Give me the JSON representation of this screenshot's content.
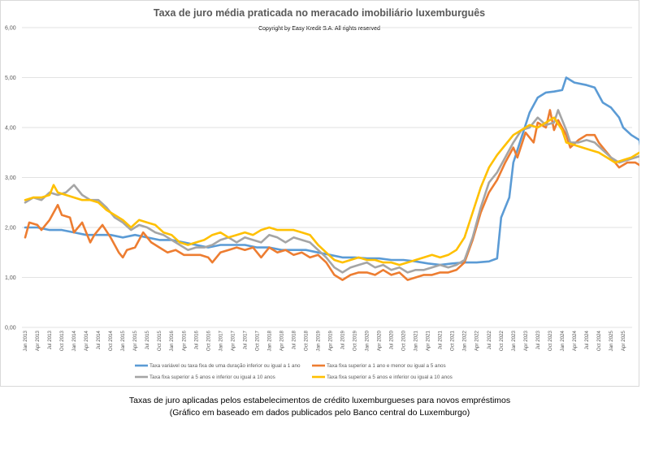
{
  "chart_data": {
    "type": "line",
    "title": "Taxa de juro média praticada no meracado imobiliário luxemburguês",
    "subtitle": "Copyright by Easy Kredit S.A. All rights reserved",
    "ylim": [
      0,
      6
    ],
    "yticks": [
      "0,00",
      "1,00",
      "2,00",
      "3,00",
      "4,00",
      "5,00",
      "6,00"
    ],
    "grid": "horizontal",
    "legend_position": "bottom",
    "x_labels": [
      "Jan 2013",
      "Apr 2013",
      "Jul 2013",
      "Oct 2013",
      "Jan 2014",
      "Apr 2014",
      "Jul 2014",
      "Oct 2014",
      "Jan 2015",
      "Apr 2015",
      "Jul 2015",
      "Oct 2015",
      "Jan 2016",
      "Apr 2016",
      "Jul 2016",
      "Oct 2016",
      "Jan 2017",
      "Apr 2017",
      "Jul 2017",
      "Oct 2017",
      "Jan 2018",
      "Apr 2018",
      "Jul 2018",
      "Oct 2018",
      "Jan 2019",
      "Apr 2019",
      "Jul 2019",
      "Oct 2019",
      "Jan 2020",
      "Apr 2020",
      "Jul 2020",
      "Oct 2020",
      "Jan 2021",
      "Apr 2021",
      "Jul 2021",
      "Oct 2021",
      "Jan 2022",
      "Apr 2022",
      "Jul 2022",
      "Oct 2022",
      "Jan 2023",
      "Apr 2023",
      "Jul 2023",
      "Oct 2023",
      "Jan 2024",
      "Apr 2024",
      "Jul 2024",
      "Oct 2024",
      "Jan 2025",
      "Apr 2025"
    ],
    "series": [
      {
        "name": "Taxa variável ou taxa fixa de uma duração inferior ou igual a 1 ano",
        "color": "#5b9bd5",
        "values": [
          [
            0,
            2.0
          ],
          [
            3,
            2.0
          ],
          [
            6,
            1.95
          ],
          [
            9,
            1.95
          ],
          [
            12,
            1.9
          ],
          [
            15,
            1.85
          ],
          [
            18,
            1.85
          ],
          [
            21,
            1.85
          ],
          [
            24,
            1.8
          ],
          [
            27,
            1.85
          ],
          [
            30,
            1.8
          ],
          [
            33,
            1.75
          ],
          [
            36,
            1.75
          ],
          [
            39,
            1.7
          ],
          [
            42,
            1.65
          ],
          [
            45,
            1.6
          ],
          [
            48,
            1.65
          ],
          [
            51,
            1.65
          ],
          [
            54,
            1.65
          ],
          [
            57,
            1.6
          ],
          [
            60,
            1.6
          ],
          [
            63,
            1.55
          ],
          [
            66,
            1.55
          ],
          [
            69,
            1.55
          ],
          [
            72,
            1.5
          ],
          [
            75,
            1.45
          ],
          [
            78,
            1.4
          ],
          [
            81,
            1.4
          ],
          [
            84,
            1.38
          ],
          [
            87,
            1.38
          ],
          [
            90,
            1.35
          ],
          [
            93,
            1.35
          ],
          [
            96,
            1.32
          ],
          [
            99,
            1.28
          ],
          [
            102,
            1.25
          ],
          [
            105,
            1.28
          ],
          [
            108,
            1.3
          ],
          [
            111,
            1.3
          ],
          [
            114,
            1.32
          ],
          [
            116,
            1.38
          ],
          [
            117,
            2.2
          ],
          [
            119,
            2.6
          ],
          [
            120,
            3.3
          ],
          [
            122,
            3.8
          ],
          [
            124,
            4.3
          ],
          [
            126,
            4.6
          ],
          [
            128,
            4.7
          ],
          [
            130,
            4.72
          ],
          [
            132,
            4.75
          ],
          [
            133,
            5.0
          ],
          [
            135,
            4.9
          ],
          [
            138,
            4.85
          ],
          [
            140,
            4.8
          ],
          [
            142,
            4.5
          ],
          [
            144,
            4.4
          ],
          [
            146,
            4.2
          ],
          [
            147,
            4.0
          ],
          [
            149,
            3.85
          ],
          [
            151,
            3.75
          ],
          [
            152,
            3.3
          ],
          [
            154,
            3.25
          ]
        ]
      },
      {
        "name": "Taxa fixa superior a 1 ano e menor ou igual a 5 anos",
        "color": "#ed7d31",
        "values": [
          [
            0,
            1.8
          ],
          [
            1,
            2.1
          ],
          [
            3,
            2.05
          ],
          [
            4,
            1.95
          ],
          [
            6,
            2.15
          ],
          [
            8,
            2.45
          ],
          [
            9,
            2.25
          ],
          [
            11,
            2.2
          ],
          [
            12,
            1.9
          ],
          [
            14,
            2.1
          ],
          [
            15,
            1.9
          ],
          [
            16,
            1.7
          ],
          [
            17,
            1.85
          ],
          [
            19,
            2.05
          ],
          [
            21,
            1.8
          ],
          [
            23,
            1.5
          ],
          [
            24,
            1.4
          ],
          [
            25,
            1.55
          ],
          [
            27,
            1.6
          ],
          [
            29,
            1.9
          ],
          [
            31,
            1.7
          ],
          [
            33,
            1.6
          ],
          [
            35,
            1.5
          ],
          [
            37,
            1.55
          ],
          [
            39,
            1.45
          ],
          [
            41,
            1.45
          ],
          [
            43,
            1.45
          ],
          [
            45,
            1.4
          ],
          [
            46,
            1.3
          ],
          [
            48,
            1.5
          ],
          [
            50,
            1.55
          ],
          [
            52,
            1.6
          ],
          [
            54,
            1.55
          ],
          [
            56,
            1.6
          ],
          [
            58,
            1.4
          ],
          [
            60,
            1.6
          ],
          [
            62,
            1.5
          ],
          [
            64,
            1.55
          ],
          [
            66,
            1.45
          ],
          [
            68,
            1.5
          ],
          [
            70,
            1.4
          ],
          [
            72,
            1.45
          ],
          [
            74,
            1.3
          ],
          [
            76,
            1.05
          ],
          [
            78,
            0.95
          ],
          [
            80,
            1.05
          ],
          [
            82,
            1.1
          ],
          [
            84,
            1.1
          ],
          [
            86,
            1.05
          ],
          [
            88,
            1.15
          ],
          [
            90,
            1.05
          ],
          [
            92,
            1.1
          ],
          [
            94,
            0.95
          ],
          [
            96,
            1.0
          ],
          [
            98,
            1.05
          ],
          [
            100,
            1.05
          ],
          [
            102,
            1.1
          ],
          [
            104,
            1.1
          ],
          [
            106,
            1.15
          ],
          [
            108,
            1.3
          ],
          [
            110,
            1.75
          ],
          [
            112,
            2.3
          ],
          [
            114,
            2.7
          ],
          [
            116,
            2.95
          ],
          [
            118,
            3.3
          ],
          [
            120,
            3.6
          ],
          [
            121,
            3.4
          ],
          [
            123,
            3.9
          ],
          [
            125,
            3.7
          ],
          [
            126,
            4.1
          ],
          [
            128,
            4.0
          ],
          [
            129,
            4.35
          ],
          [
            130,
            3.95
          ],
          [
            131,
            4.15
          ],
          [
            133,
            3.85
          ],
          [
            134,
            3.6
          ],
          [
            136,
            3.75
          ],
          [
            138,
            3.85
          ],
          [
            140,
            3.85
          ],
          [
            141,
            3.7
          ],
          [
            143,
            3.5
          ],
          [
            145,
            3.3
          ],
          [
            146,
            3.2
          ],
          [
            148,
            3.3
          ],
          [
            150,
            3.3
          ],
          [
            152,
            3.2
          ],
          [
            154,
            3.2
          ]
        ]
      },
      {
        "name": "Taxa fixa superior a 5 anos e inferior ou igual a 10 anos",
        "color": "#a5a5a5",
        "values": [
          [
            0,
            2.5
          ],
          [
            2,
            2.6
          ],
          [
            4,
            2.55
          ],
          [
            6,
            2.7
          ],
          [
            8,
            2.65
          ],
          [
            10,
            2.7
          ],
          [
            12,
            2.85
          ],
          [
            14,
            2.65
          ],
          [
            16,
            2.55
          ],
          [
            18,
            2.55
          ],
          [
            20,
            2.4
          ],
          [
            22,
            2.2
          ],
          [
            24,
            2.1
          ],
          [
            26,
            1.95
          ],
          [
            28,
            2.05
          ],
          [
            30,
            2.0
          ],
          [
            32,
            1.9
          ],
          [
            34,
            1.85
          ],
          [
            36,
            1.75
          ],
          [
            38,
            1.65
          ],
          [
            40,
            1.55
          ],
          [
            42,
            1.6
          ],
          [
            44,
            1.6
          ],
          [
            46,
            1.65
          ],
          [
            48,
            1.75
          ],
          [
            50,
            1.8
          ],
          [
            52,
            1.7
          ],
          [
            54,
            1.8
          ],
          [
            56,
            1.75
          ],
          [
            58,
            1.7
          ],
          [
            60,
            1.85
          ],
          [
            62,
            1.8
          ],
          [
            64,
            1.7
          ],
          [
            66,
            1.8
          ],
          [
            68,
            1.75
          ],
          [
            70,
            1.7
          ],
          [
            72,
            1.55
          ],
          [
            74,
            1.4
          ],
          [
            76,
            1.2
          ],
          [
            78,
            1.1
          ],
          [
            80,
            1.2
          ],
          [
            82,
            1.25
          ],
          [
            84,
            1.3
          ],
          [
            86,
            1.2
          ],
          [
            88,
            1.25
          ],
          [
            90,
            1.15
          ],
          [
            92,
            1.2
          ],
          [
            94,
            1.1
          ],
          [
            96,
            1.15
          ],
          [
            98,
            1.15
          ],
          [
            100,
            1.2
          ],
          [
            102,
            1.25
          ],
          [
            104,
            1.2
          ],
          [
            106,
            1.25
          ],
          [
            108,
            1.35
          ],
          [
            110,
            1.8
          ],
          [
            112,
            2.4
          ],
          [
            114,
            2.9
          ],
          [
            116,
            3.1
          ],
          [
            118,
            3.4
          ],
          [
            120,
            3.7
          ],
          [
            122,
            3.95
          ],
          [
            124,
            4.0
          ],
          [
            126,
            4.2
          ],
          [
            128,
            4.05
          ],
          [
            130,
            4.1
          ],
          [
            131,
            4.35
          ],
          [
            133,
            3.95
          ],
          [
            134,
            3.7
          ],
          [
            136,
            3.7
          ],
          [
            138,
            3.75
          ],
          [
            140,
            3.7
          ],
          [
            142,
            3.55
          ],
          [
            144,
            3.4
          ],
          [
            146,
            3.3
          ],
          [
            148,
            3.35
          ],
          [
            150,
            3.4
          ],
          [
            152,
            3.45
          ],
          [
            154,
            3.55
          ]
        ]
      },
      {
        "name": "Taxa fixa superior a 5 anos e inferior ou igual a 10 anos",
        "color": "#ffc000",
        "values": [
          [
            0,
            2.55
          ],
          [
            2,
            2.6
          ],
          [
            4,
            2.6
          ],
          [
            6,
            2.65
          ],
          [
            7,
            2.85
          ],
          [
            8,
            2.7
          ],
          [
            10,
            2.65
          ],
          [
            12,
            2.6
          ],
          [
            14,
            2.55
          ],
          [
            16,
            2.55
          ],
          [
            18,
            2.5
          ],
          [
            20,
            2.35
          ],
          [
            22,
            2.25
          ],
          [
            24,
            2.15
          ],
          [
            26,
            2.0
          ],
          [
            28,
            2.15
          ],
          [
            30,
            2.1
          ],
          [
            32,
            2.05
          ],
          [
            34,
            1.9
          ],
          [
            36,
            1.85
          ],
          [
            38,
            1.7
          ],
          [
            40,
            1.65
          ],
          [
            42,
            1.7
          ],
          [
            44,
            1.75
          ],
          [
            46,
            1.85
          ],
          [
            48,
            1.9
          ],
          [
            50,
            1.8
          ],
          [
            52,
            1.85
          ],
          [
            54,
            1.9
          ],
          [
            56,
            1.85
          ],
          [
            58,
            1.95
          ],
          [
            60,
            2.0
          ],
          [
            62,
            1.95
          ],
          [
            64,
            1.95
          ],
          [
            66,
            1.95
          ],
          [
            68,
            1.9
          ],
          [
            70,
            1.85
          ],
          [
            72,
            1.65
          ],
          [
            74,
            1.5
          ],
          [
            76,
            1.35
          ],
          [
            78,
            1.3
          ],
          [
            80,
            1.35
          ],
          [
            82,
            1.4
          ],
          [
            84,
            1.35
          ],
          [
            86,
            1.35
          ],
          [
            88,
            1.3
          ],
          [
            90,
            1.3
          ],
          [
            92,
            1.25
          ],
          [
            94,
            1.3
          ],
          [
            96,
            1.35
          ],
          [
            98,
            1.4
          ],
          [
            100,
            1.45
          ],
          [
            102,
            1.4
          ],
          [
            104,
            1.45
          ],
          [
            106,
            1.55
          ],
          [
            108,
            1.8
          ],
          [
            110,
            2.3
          ],
          [
            112,
            2.8
          ],
          [
            114,
            3.2
          ],
          [
            116,
            3.45
          ],
          [
            118,
            3.65
          ],
          [
            120,
            3.85
          ],
          [
            122,
            3.95
          ],
          [
            124,
            4.05
          ],
          [
            126,
            4.0
          ],
          [
            128,
            4.1
          ],
          [
            130,
            4.2
          ],
          [
            132,
            3.95
          ],
          [
            133,
            3.7
          ],
          [
            135,
            3.65
          ],
          [
            137,
            3.6
          ],
          [
            139,
            3.55
          ],
          [
            141,
            3.5
          ],
          [
            143,
            3.4
          ],
          [
            145,
            3.3
          ],
          [
            147,
            3.35
          ],
          [
            149,
            3.4
          ],
          [
            151,
            3.5
          ],
          [
            153,
            3.45
          ],
          [
            154,
            3.45
          ]
        ]
      }
    ]
  },
  "caption": {
    "line1": "Taxas de juro aplicadas pelos estabelecimentos de crédito luxemburgueses para novos empréstimos",
    "line2": "(Gráfico em baseado em dados publicados pelo Banco central do Luxemburgo)"
  }
}
